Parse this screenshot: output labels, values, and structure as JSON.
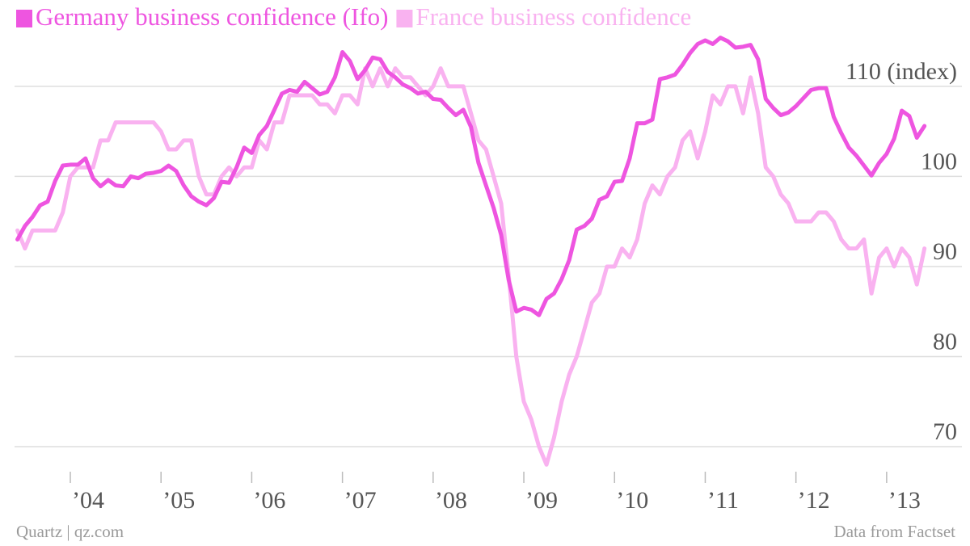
{
  "chart_data": {
    "type": "line",
    "credit": "Quartz | qz.com",
    "source": "Data from Factset",
    "x": [
      2003.417,
      2003.5,
      2003.583,
      2003.667,
      2003.75,
      2003.833,
      2003.917,
      2004,
      2004.083,
      2004.167,
      2004.25,
      2004.333,
      2004.417,
      2004.5,
      2004.583,
      2004.667,
      2004.75,
      2004.833,
      2004.917,
      2005,
      2005.083,
      2005.167,
      2005.25,
      2005.333,
      2005.417,
      2005.5,
      2005.583,
      2005.667,
      2005.75,
      2005.833,
      2005.917,
      2006,
      2006.083,
      2006.167,
      2006.25,
      2006.333,
      2006.417,
      2006.5,
      2006.583,
      2006.667,
      2006.75,
      2006.833,
      2006.917,
      2007,
      2007.083,
      2007.167,
      2007.25,
      2007.333,
      2007.417,
      2007.5,
      2007.583,
      2007.667,
      2007.75,
      2007.833,
      2007.917,
      2008,
      2008.083,
      2008.167,
      2008.25,
      2008.333,
      2008.417,
      2008.5,
      2008.583,
      2008.667,
      2008.75,
      2008.833,
      2008.917,
      2009,
      2009.083,
      2009.167,
      2009.25,
      2009.333,
      2009.417,
      2009.5,
      2009.583,
      2009.667,
      2009.75,
      2009.833,
      2009.917,
      2010,
      2010.083,
      2010.167,
      2010.25,
      2010.333,
      2010.417,
      2010.5,
      2010.583,
      2010.667,
      2010.75,
      2010.833,
      2010.917,
      2011,
      2011.083,
      2011.167,
      2011.25,
      2011.333,
      2011.417,
      2011.5,
      2011.583,
      2011.667,
      2011.75,
      2011.833,
      2011.917,
      2012,
      2012.083,
      2012.167,
      2012.25,
      2012.333,
      2012.417,
      2012.5,
      2012.583,
      2012.667,
      2012.75,
      2012.833,
      2012.917,
      2013,
      2013.083,
      2013.167,
      2013.25,
      2013.333,
      2013.417
    ],
    "series": [
      {
        "name": "Germany business confidence (Ifo)",
        "color": "#ee55e0",
        "values": [
          93,
          94.5,
          95.5,
          96.8,
          97.2,
          99.5,
          101.2,
          101.3,
          101.3,
          102,
          99.8,
          98.9,
          99.6,
          99,
          98.9,
          100,
          99.8,
          100.3,
          100.4,
          100.6,
          101.2,
          100.6,
          99,
          97.8,
          97.2,
          96.8,
          97.6,
          99.4,
          99.3,
          101,
          103.2,
          102.6,
          104.6,
          105.6,
          107.4,
          109.2,
          109.6,
          109.4,
          110.5,
          109.8,
          109.1,
          109.4,
          111,
          113.8,
          112.8,
          110.8,
          111.8,
          113.2,
          113,
          111.6,
          111,
          110.2,
          109.8,
          109.2,
          109.4,
          108.6,
          108.5,
          107.6,
          106.8,
          107.4,
          105.5,
          101.5,
          99,
          96.5,
          93.5,
          88.5,
          85,
          85.4,
          85.2,
          84.6,
          86.4,
          87,
          88.6,
          90.7,
          94.1,
          94.5,
          95.3,
          97.4,
          97.8,
          99.4,
          99.5,
          102,
          105.9,
          105.9,
          106.3,
          110.8,
          111,
          111.3,
          112.4,
          113.7,
          114.7,
          115.1,
          114.7,
          115.4,
          115,
          114.3,
          114.4,
          114.6,
          113,
          108.6,
          107.6,
          106.8,
          107.1,
          107.8,
          108.7,
          109.6,
          109.8,
          109.8,
          106.6,
          104.8,
          103.2,
          102.3,
          101.2,
          100.1,
          101.5,
          102.5,
          104.2,
          107.3,
          106.7,
          104.3,
          105.6
        ]
      },
      {
        "name": "France business confidence",
        "color": "#f9b2f0",
        "values": [
          94,
          92,
          94,
          94,
          94,
          94,
          96,
          100,
          101,
          101,
          101,
          104,
          104,
          106,
          106,
          106,
          106,
          106,
          106,
          105,
          103,
          103,
          104,
          104,
          100,
          98,
          98,
          100,
          101,
          100,
          101,
          101,
          104,
          103,
          106,
          106,
          109,
          109,
          109,
          109,
          108,
          108,
          107,
          109,
          109,
          108,
          112,
          110,
          112,
          110,
          112,
          111,
          111,
          110,
          109,
          110,
          112,
          110,
          110,
          110,
          107,
          104,
          103,
          100,
          97,
          89,
          80,
          75,
          73,
          70,
          68,
          71,
          75,
          78,
          80,
          83,
          86,
          87,
          90,
          90,
          92,
          91,
          93,
          97,
          99,
          98,
          100,
          101,
          104,
          105,
          102,
          105,
          109,
          108,
          110,
          110,
          107,
          111,
          107,
          101,
          100,
          98,
          97,
          95,
          95,
          95,
          96,
          96,
          95,
          93,
          92,
          92,
          93,
          87,
          91,
          92,
          90,
          92,
          91,
          88,
          92
        ]
      }
    ],
    "xlim": [
      2003.385,
      2013.83
    ],
    "xticks": [
      {
        "value": 2004,
        "label": "’04"
      },
      {
        "value": 2005,
        "label": "’05"
      },
      {
        "value": 2006,
        "label": "’06"
      },
      {
        "value": 2007,
        "label": "’07"
      },
      {
        "value": 2008,
        "label": "’08"
      },
      {
        "value": 2009,
        "label": "’09"
      },
      {
        "value": 2010,
        "label": "’10"
      },
      {
        "value": 2011,
        "label": "’11"
      },
      {
        "value": 2012,
        "label": "’12"
      },
      {
        "value": 2013,
        "label": "’13"
      }
    ],
    "ylim": [
      66.5,
      116
    ],
    "yticks": [
      70,
      80,
      90,
      100,
      {
        "value": 110,
        "label": "110 (index)"
      }
    ],
    "grid": true
  }
}
